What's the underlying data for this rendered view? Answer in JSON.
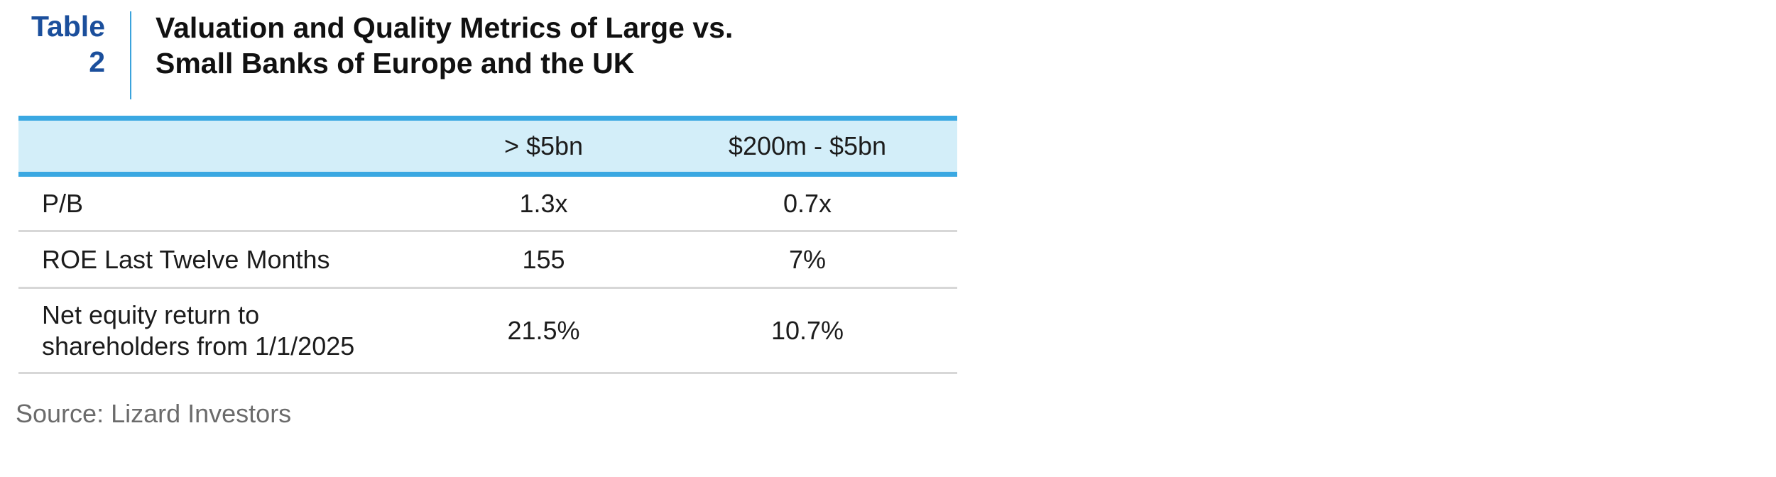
{
  "label": {
    "word": "Table",
    "number": "2"
  },
  "title": {
    "line1": "Valuation and Quality Metrics of Large vs.",
    "line2": "Small Banks of Europe and the UK"
  },
  "table": {
    "headers": [
      "",
      "> $5bn",
      "$200m - $5bn"
    ],
    "rows": [
      {
        "label_line1": "P/B",
        "label_line2": "",
        "large": "1.3x",
        "small": "0.7x"
      },
      {
        "label_line1": "ROE Last Twelve Months",
        "label_line2": "",
        "large": "155",
        "small": "7%"
      },
      {
        "label_line1": "Net equity return to",
        "label_line2": "shareholders from 1/1/2025",
        "large": "21.5%",
        "small": "10.7%"
      }
    ]
  },
  "source": "Source: Lizard Investors",
  "colors": {
    "label_blue": "#1b4f9c",
    "rule_blue": "#3aa8e2",
    "header_fill": "#d3eef9",
    "row_rule": "#d7d7d7",
    "source_gray": "#6b6b6b"
  }
}
